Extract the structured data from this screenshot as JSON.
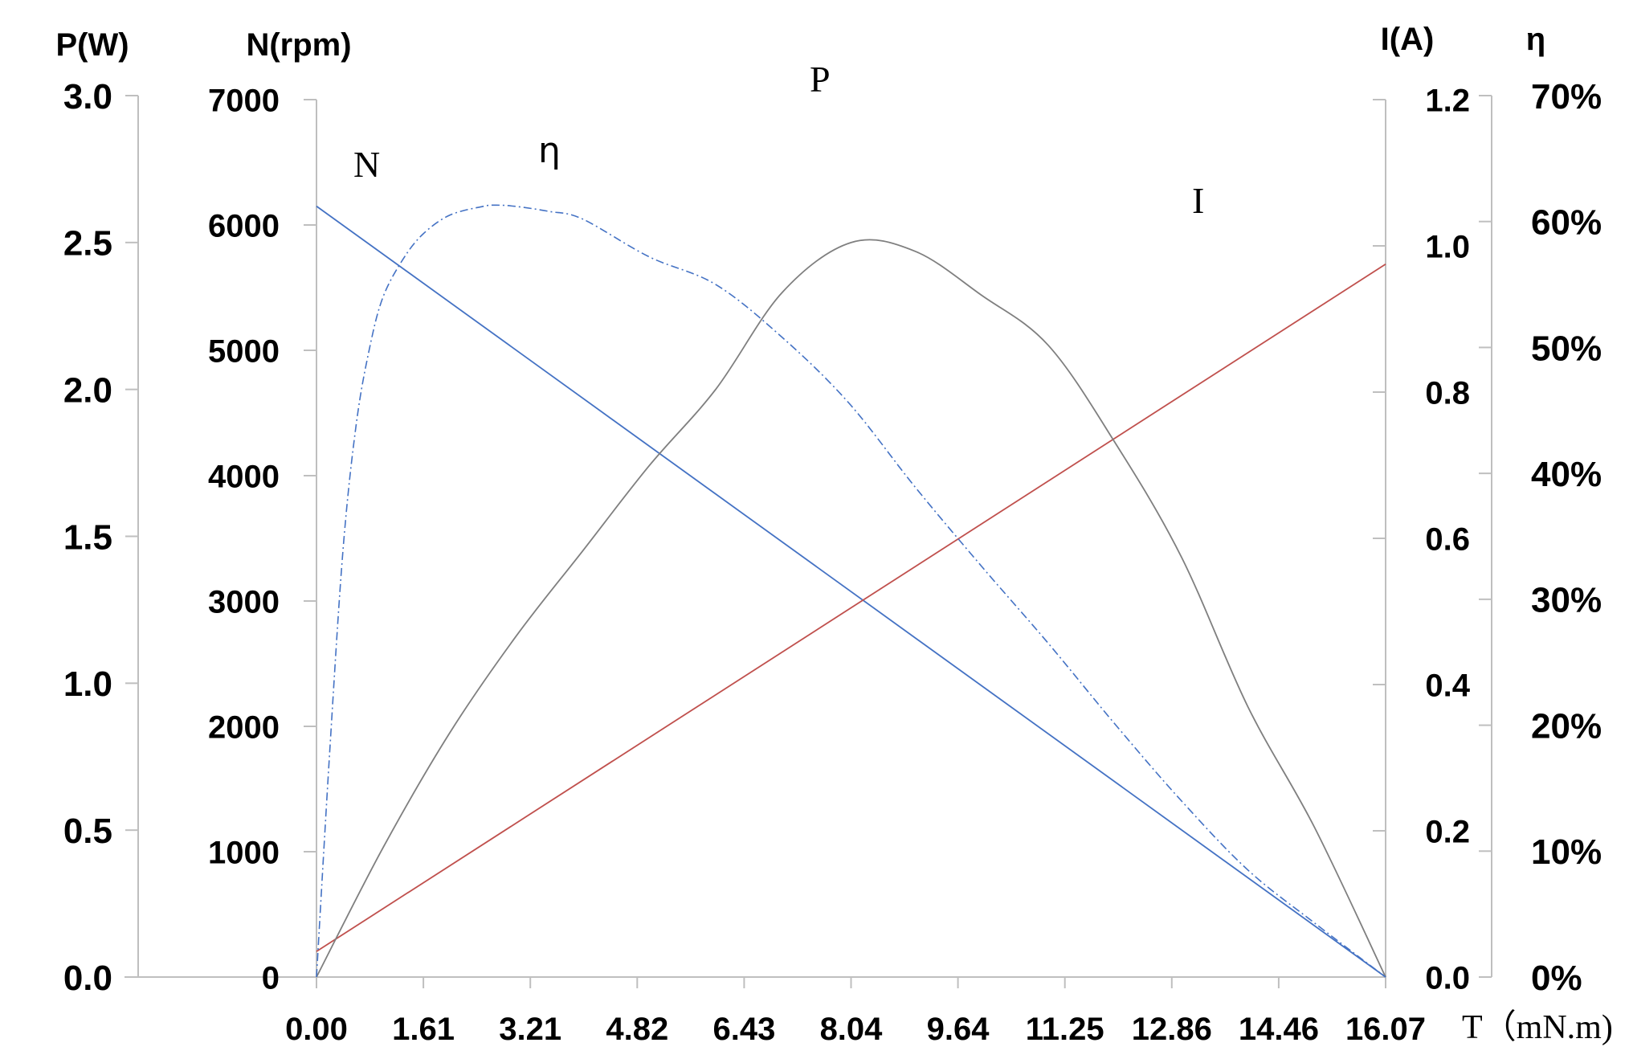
{
  "chart_data": {
    "type": "line",
    "x_axis": {
      "title": "T（mN.m)",
      "range": [
        0,
        16.07
      ],
      "tick_values": [
        0,
        1.607,
        3.214,
        4.821,
        6.428,
        8.035,
        9.642,
        11.249,
        12.856,
        14.463,
        16.07
      ],
      "tick_labels": [
        "0.00",
        "1.61",
        "3.21",
        "4.82",
        "6.43",
        "8.04",
        "9.64",
        "11.25",
        "12.86",
        "14.46",
        "16.07"
      ]
    },
    "axes": {
      "P": {
        "title": "P(W)",
        "range": [
          0,
          3.0
        ],
        "ticks": [
          0,
          0.5,
          1.0,
          1.5,
          2.0,
          2.5,
          3.0
        ],
        "tick_labels": [
          "0.0",
          "0.5",
          "1.0",
          "1.5",
          "2.0",
          "2.5",
          "3.0"
        ]
      },
      "N": {
        "title": "N(rpm)",
        "range": [
          0,
          7000
        ],
        "ticks": [
          0,
          1000,
          2000,
          3000,
          4000,
          5000,
          6000,
          7000
        ],
        "tick_labels": [
          "0",
          "1000",
          "2000",
          "3000",
          "4000",
          "5000",
          "6000",
          "7000"
        ]
      },
      "I": {
        "title": "I(A)",
        "range": [
          0,
          1.2
        ],
        "ticks": [
          0,
          0.2,
          0.4,
          0.6,
          0.8,
          1.0,
          1.2
        ],
        "tick_labels": [
          "0.0",
          "0.2",
          "0.4",
          "0.6",
          "0.8",
          "1.0",
          "1.2"
        ]
      },
      "eta": {
        "title": "η",
        "range": [
          0,
          70
        ],
        "ticks": [
          0,
          10,
          20,
          30,
          40,
          50,
          60,
          70
        ],
        "tick_labels": [
          "0%",
          "10%",
          "20%",
          "30%",
          "40%",
          "50%",
          "60%",
          "70%"
        ]
      }
    },
    "series": [
      {
        "name": "N",
        "axis": "N",
        "color": "#4472c4",
        "style": "solid",
        "x": [
          0,
          16.07
        ],
        "y": [
          6150,
          0
        ]
      },
      {
        "name": "I",
        "axis": "I",
        "color": "#c0504d",
        "style": "solid",
        "x": [
          0,
          16.07
        ],
        "y": [
          0.035,
          0.975
        ]
      },
      {
        "name": "P",
        "axis": "P",
        "color": "#7f7f7f",
        "style": "solid",
        "x": [
          0,
          1.0,
          2.0,
          3.0,
          4.0,
          5.0,
          6.0,
          7.0,
          8.035,
          9.0,
          10.0,
          11.0,
          12.0,
          13.0,
          14.0,
          15.0,
          16.07
        ],
        "y": [
          0,
          0.44,
          0.83,
          1.16,
          1.45,
          1.74,
          2.0,
          2.33,
          2.5,
          2.47,
          2.32,
          2.15,
          1.82,
          1.43,
          0.92,
          0.51,
          0
        ]
      },
      {
        "name": "η",
        "axis": "eta",
        "color": "#4472c4",
        "style": "dashdot",
        "x": [
          0,
          0.2,
          0.4,
          0.6,
          0.8,
          1.0,
          1.3,
          1.6,
          2.0,
          2.5,
          2.7,
          3.0,
          3.5,
          4.0,
          5.0,
          6.0,
          7.0,
          8.0,
          9.0,
          10.0,
          11.0,
          12.0,
          13.0,
          14.0,
          15.0,
          16.07
        ],
        "y": [
          0,
          18,
          34,
          44,
          50,
          54,
          57,
          59,
          60.5,
          61.2,
          61.3,
          61.2,
          60.8,
          60.2,
          57.2,
          55.0,
          50.8,
          45.6,
          38.9,
          32.6,
          26.5,
          20.1,
          14.0,
          8.5,
          4.3,
          0
        ]
      }
    ],
    "curve_labels": [
      {
        "text": "N"
      },
      {
        "text": "η"
      },
      {
        "text": "P"
      },
      {
        "text": "I"
      }
    ]
  }
}
